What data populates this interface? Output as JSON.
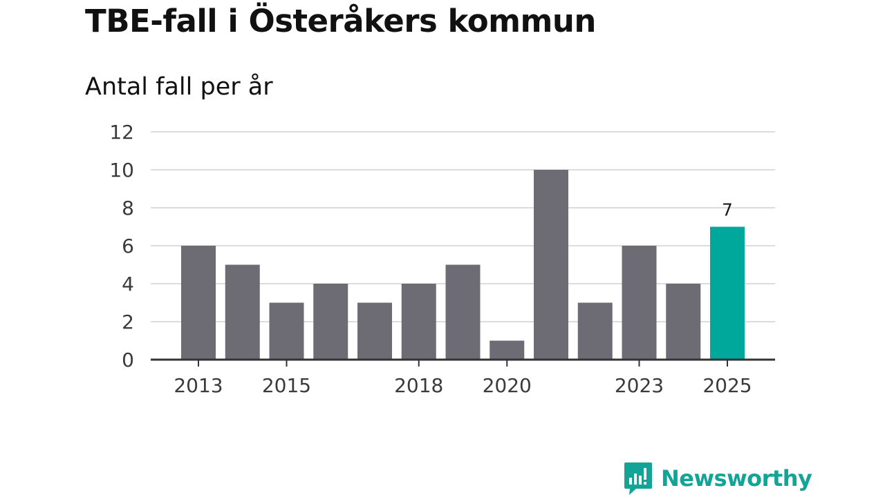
{
  "title": "TBE-fall i Österåkers kommun",
  "subtitle": "Antal fall per år",
  "brand": "Newsworthy",
  "colors": {
    "bar": "#6d6c74",
    "highlight": "#00a79b",
    "grid": "#dcdcdc",
    "axis": "#333333",
    "brand": "#12a496"
  },
  "chart_data": {
    "type": "bar",
    "title": "TBE-fall i Österåkers kommun",
    "subtitle": "Antal fall per år",
    "xlabel": "",
    "ylabel": "",
    "categories": [
      "2013",
      "2014",
      "2015",
      "2016",
      "2017",
      "2018",
      "2019",
      "2020",
      "2021",
      "2022",
      "2023",
      "2024",
      "2025"
    ],
    "values": [
      6,
      5,
      3,
      4,
      3,
      4,
      5,
      1,
      10,
      3,
      6,
      4,
      7
    ],
    "highlight_index": 12,
    "data_labels": [
      {
        "index": 12,
        "text": "7"
      }
    ],
    "x_tick_labels": [
      "2013",
      "2015",
      "2018",
      "2020",
      "2023",
      "2025"
    ],
    "y_ticks": [
      0,
      2,
      4,
      6,
      8,
      10,
      12
    ],
    "ylim": [
      0,
      12
    ],
    "grid": true
  }
}
